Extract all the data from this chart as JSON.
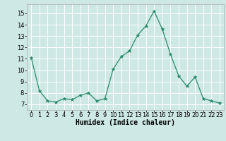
{
  "x": [
    0,
    1,
    2,
    3,
    4,
    5,
    6,
    7,
    8,
    9,
    10,
    11,
    12,
    13,
    14,
    15,
    16,
    17,
    18,
    19,
    20,
    21,
    22,
    23
  ],
  "y": [
    11.1,
    8.2,
    7.3,
    7.2,
    7.5,
    7.4,
    7.8,
    8.0,
    7.3,
    7.5,
    10.1,
    11.2,
    11.7,
    13.1,
    13.9,
    15.2,
    13.6,
    11.4,
    9.5,
    8.6,
    9.4,
    7.5,
    7.3,
    7.1
  ],
  "xlabel": "Humidex (Indice chaleur)",
  "xlim": [
    -0.5,
    23.5
  ],
  "ylim": [
    6.5,
    15.8
  ],
  "yticks": [
    7,
    8,
    9,
    10,
    11,
    12,
    13,
    14,
    15
  ],
  "xticks": [
    0,
    1,
    2,
    3,
    4,
    5,
    6,
    7,
    8,
    9,
    10,
    11,
    12,
    13,
    14,
    15,
    16,
    17,
    18,
    19,
    20,
    21,
    22,
    23
  ],
  "line_color": "#2e8b6b",
  "marker": "*",
  "marker_size": 3.5,
  "bg_color": "#cde8e5",
  "grid_color": "#ffffff",
  "label_fontsize": 7,
  "tick_fontsize": 6
}
